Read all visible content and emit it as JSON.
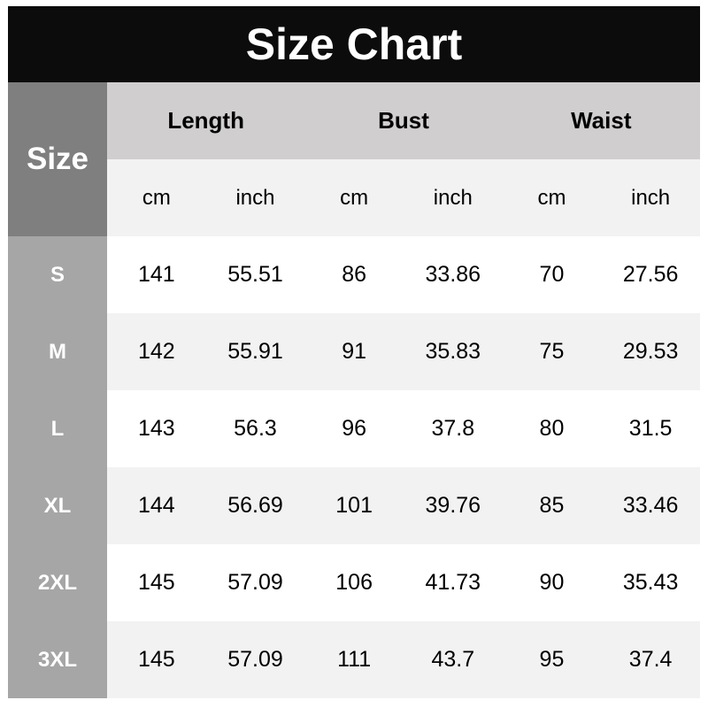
{
  "title": "Size Chart",
  "size_header": "Size",
  "groups": [
    "Length",
    "Bust",
    "Waist"
  ],
  "units": [
    "cm",
    "inch",
    "cm",
    "inch",
    "cm",
    "inch"
  ],
  "rows": [
    {
      "size": "S",
      "values": [
        "141",
        "55.51",
        "86",
        "33.86",
        "70",
        "27.56"
      ]
    },
    {
      "size": "M",
      "values": [
        "142",
        "55.91",
        "91",
        "35.83",
        "75",
        "29.53"
      ]
    },
    {
      "size": "L",
      "values": [
        "143",
        "56.3",
        "96",
        "37.8",
        "80",
        "31.5"
      ]
    },
    {
      "size": "XL",
      "values": [
        "144",
        "56.69",
        "101",
        "39.76",
        "85",
        "33.46"
      ]
    },
    {
      "size": "2XL",
      "values": [
        "145",
        "57.09",
        "106",
        "41.73",
        "90",
        "35.43"
      ]
    },
    {
      "size": "3XL",
      "values": [
        "145",
        "57.09",
        "111",
        "43.7",
        "95",
        "37.4"
      ]
    }
  ]
}
